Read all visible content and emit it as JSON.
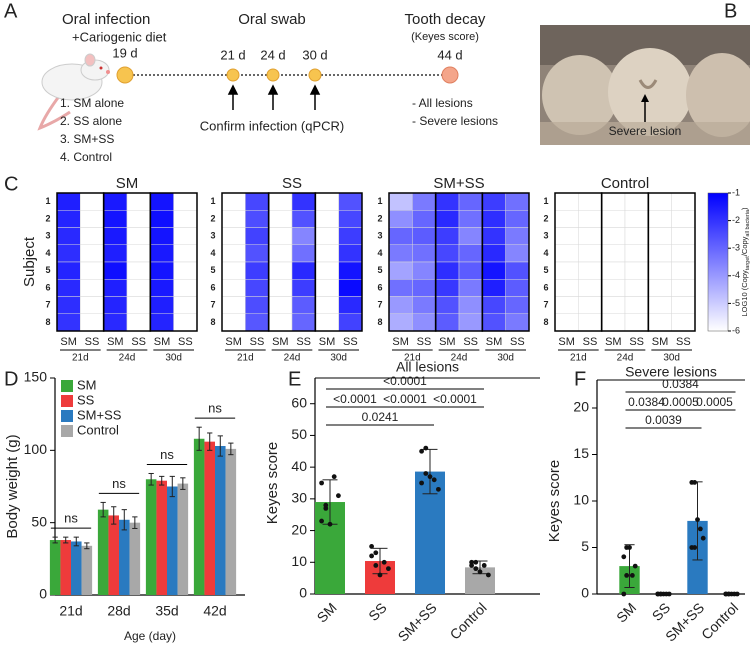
{
  "panel_labels": [
    "A",
    "B",
    "C",
    "D",
    "E",
    "F"
  ],
  "panel_a": {
    "infection_title": "Oral infection",
    "infection_diet": "+Cariogenic diet",
    "swab_title": "Oral swab",
    "decay_title": "Tooth decay",
    "decay_sub": "(Keyes score)",
    "timepoints": [
      "19 d",
      "21 d",
      "24 d",
      "30 d",
      "44 d"
    ],
    "groups": [
      "1. SM alone",
      "2. SS alone",
      "3. SM+SS",
      "4. Control"
    ],
    "confirm": "Confirm infection (qPCR)",
    "outcomes": [
      "- All lesions",
      "- Severe lesions"
    ]
  },
  "panel_b": {
    "annotation": "Severe lesion"
  },
  "chart_data": [
    {
      "type": "heatmap",
      "title": "SM",
      "ylabel": "Subject",
      "rows": [
        "1",
        "2",
        "3",
        "4",
        "5",
        "6",
        "7",
        "8"
      ],
      "columns": [
        "SM",
        "SS",
        "SM",
        "SS",
        "SM",
        "SS"
      ],
      "column_groups": [
        "21d",
        "24d",
        "30d"
      ],
      "zlim": [
        -6,
        -1
      ],
      "values": [
        [
          -1.6,
          -6,
          -1.5,
          -6,
          -1.4,
          -6
        ],
        [
          -1.7,
          -6,
          -1.4,
          -6,
          -1.3,
          -6
        ],
        [
          -1.8,
          -6,
          -1.5,
          -6,
          -1.4,
          -6
        ],
        [
          -1.9,
          -6,
          -1.6,
          -6,
          -1.5,
          -6
        ],
        [
          -1.7,
          -6,
          -1.3,
          -6,
          -1.4,
          -6
        ],
        [
          -1.8,
          -6,
          -1.6,
          -6,
          -1.5,
          -6
        ],
        [
          -1.9,
          -6,
          -1.7,
          -6,
          -1.6,
          -6
        ],
        [
          -2.0,
          -6,
          -1.8,
          -6,
          -1.7,
          -6
        ]
      ]
    },
    {
      "type": "heatmap",
      "title": "SS",
      "rows": [
        "1",
        "2",
        "3",
        "4",
        "5",
        "6",
        "7",
        "8"
      ],
      "columns": [
        "SM",
        "SS",
        "SM",
        "SS",
        "SM",
        "SS"
      ],
      "column_groups": [
        "21d",
        "24d",
        "30d"
      ],
      "zlim": [
        -6,
        -1
      ],
      "values": [
        [
          -6,
          -2.4,
          -6,
          -2.0,
          -6,
          -2.6
        ],
        [
          -6,
          -2.5,
          -6,
          -2.6,
          -6,
          -2.4
        ],
        [
          -6,
          -2.3,
          -6,
          -3.6,
          -6,
          -2.2
        ],
        [
          -6,
          -2.6,
          -6,
          -3.2,
          -6,
          -2.0
        ],
        [
          -6,
          -2.2,
          -6,
          -1.8,
          -6,
          -1.4
        ],
        [
          -6,
          -2.4,
          -6,
          -2.2,
          -6,
          -1.2
        ],
        [
          -6,
          -2.5,
          -6,
          -2.8,
          -6,
          -1.8
        ],
        [
          -6,
          -2.7,
          -6,
          -3.0,
          -6,
          -2.3
        ]
      ]
    },
    {
      "type": "heatmap",
      "title": "SM+SS",
      "rows": [
        "1",
        "2",
        "3",
        "4",
        "5",
        "6",
        "7",
        "8"
      ],
      "columns": [
        "SM",
        "SS",
        "SM",
        "SS",
        "SM",
        "SS"
      ],
      "column_groups": [
        "21d",
        "24d",
        "30d"
      ],
      "zlim": [
        -6,
        -1
      ],
      "values": [
        [
          -4.8,
          -3.4,
          -2.0,
          -3.0,
          -2.2,
          -3.2
        ],
        [
          -3.8,
          -3.0,
          -1.8,
          -3.2,
          -1.9,
          -3.0
        ],
        [
          -3.0,
          -2.8,
          -2.2,
          -3.6,
          -2.0,
          -3.4
        ],
        [
          -3.4,
          -3.2,
          -2.4,
          -3.0,
          -1.8,
          -3.6
        ],
        [
          -4.2,
          -3.6,
          -1.9,
          -2.8,
          -1.4,
          -2.6
        ],
        [
          -3.2,
          -3.0,
          -2.1,
          -3.4,
          -1.6,
          -2.8
        ],
        [
          -4.0,
          -3.4,
          -2.6,
          -3.8,
          -2.4,
          -3.0
        ],
        [
          -4.4,
          -3.8,
          -2.8,
          -4.0,
          -2.6,
          -3.4
        ]
      ]
    },
    {
      "type": "heatmap",
      "title": "Control",
      "rows": [
        "1",
        "2",
        "3",
        "4",
        "5",
        "6",
        "7",
        "8"
      ],
      "columns": [
        "SM",
        "SS",
        "SM",
        "SS",
        "SM",
        "SS"
      ],
      "column_groups": [
        "21d",
        "24d",
        "30d"
      ],
      "zlim": [
        -6,
        -1
      ],
      "zticks": [
        -1,
        -2,
        -3,
        -4,
        -5,
        -6
      ],
      "colorbar_label": [
        "LOG10 (Copy",
        "target",
        "/Copy",
        "all bacteria",
        ")"
      ],
      "values": [
        [
          -6,
          -6,
          -6,
          -6,
          -6,
          -6
        ],
        [
          -6,
          -6,
          -6,
          -6,
          -6,
          -6
        ],
        [
          -6,
          -6,
          -6,
          -6,
          -6,
          -6
        ],
        [
          -6,
          -6,
          -6,
          -6,
          -6,
          -6
        ],
        [
          -6,
          -6,
          -6,
          -6,
          -6,
          -6
        ],
        [
          -6,
          -6,
          -6,
          -6,
          -6,
          -6
        ],
        [
          -6,
          -6,
          -6,
          -6,
          -6,
          -6
        ],
        [
          -6,
          -6,
          -6,
          -6,
          -6,
          -6
        ]
      ]
    },
    {
      "type": "bar",
      "ylabel": "Body weight (g)",
      "xlabel": "Age (day)",
      "categories": [
        "21d",
        "28d",
        "35d",
        "42d"
      ],
      "ylim": [
        0,
        150
      ],
      "yticks": [
        0,
        50,
        100,
        150
      ],
      "legend": "top-left",
      "group_annotations": [
        "ns",
        "ns",
        "ns",
        "ns"
      ],
      "series": [
        {
          "name": "SM",
          "color": "#3aa83a",
          "values": [
            38,
            59,
            80,
            108
          ],
          "errors": [
            2,
            5,
            4,
            8
          ]
        },
        {
          "name": "SS",
          "color": "#ee3b3b",
          "values": [
            38,
            55,
            79,
            106
          ],
          "errors": [
            2,
            6,
            3,
            6
          ]
        },
        {
          "name": "SM+SS",
          "color": "#2a7ac0",
          "values": [
            37,
            52,
            75,
            103
          ],
          "errors": [
            3,
            7,
            7,
            7
          ]
        },
        {
          "name": "Control",
          "color": "#a8a8a8",
          "values": [
            34,
            50,
            77,
            101
          ],
          "errors": [
            2,
            4,
            4,
            4
          ]
        }
      ]
    },
    {
      "type": "bar",
      "title": "All lesions",
      "ylabel": "Keyes score",
      "categories": [
        "SM",
        "SS",
        "SM+SS",
        "Control"
      ],
      "ylim": [
        0,
        70
      ],
      "yticks": [
        0,
        10,
        20,
        30,
        40,
        50,
        60
      ],
      "colors": [
        "#3aa83a",
        "#ee3b3b",
        "#2a7ac0",
        "#a8a8a8"
      ],
      "values": [
        29,
        10.4,
        38.6,
        8.4
      ],
      "errors": [
        7,
        4,
        7,
        2
      ],
      "points": [
        [
          23,
          27,
          22,
          37,
          31,
          35,
          28
        ],
        [
          15,
          13,
          6,
          10,
          8,
          12,
          9
        ],
        [
          45,
          46,
          37,
          36,
          33,
          35,
          38
        ],
        [
          10,
          8,
          7,
          9,
          6,
          9,
          10
        ]
      ],
      "comparisons": [
        {
          "groups": [
            "SM",
            "Control"
          ],
          "label": "<0.0001"
        },
        {
          "groups": [
            "SM",
            "SS"
          ],
          "label": "<0.0001"
        },
        {
          "groups": [
            "SS",
            "SM+SS"
          ],
          "label": "<0.0001"
        },
        {
          "groups": [
            "SM+SS",
            "Control"
          ],
          "label": "<0.0001"
        },
        {
          "groups": [
            "SM",
            "SM+SS"
          ],
          "label": "0.0241"
        }
      ]
    },
    {
      "type": "bar",
      "title": "Severe lesions",
      "ylabel": "Keyes score",
      "categories": [
        "SM",
        "SS",
        "SM+SS",
        "Control"
      ],
      "ylim": [
        0,
        20
      ],
      "yticks": [
        0,
        5,
        10,
        15,
        20
      ],
      "colors": [
        "#3aa83a",
        "#ee3b3b",
        "#2a7ac0",
        "#a8a8a8"
      ],
      "values": [
        3,
        0,
        7.86,
        0
      ],
      "errors": [
        2.3,
        0,
        4.2,
        0
      ],
      "points": [
        [
          0,
          5,
          5,
          2,
          3,
          4,
          2
        ],
        [
          0,
          0,
          0,
          0,
          0,
          0,
          0
        ],
        [
          12,
          12,
          8,
          7,
          6,
          5,
          5
        ],
        [
          0,
          0,
          0,
          0,
          0,
          0,
          0
        ]
      ],
      "comparisons": [
        {
          "groups": [
            "SM",
            "Control"
          ],
          "label": "0.0384"
        },
        {
          "groups": [
            "SM",
            "SS"
          ],
          "label": "0.0384"
        },
        {
          "groups": [
            "SS",
            "SM+SS"
          ],
          "label": "0.0005"
        },
        {
          "groups": [
            "SM+SS",
            "Control"
          ],
          "label": "0.0005"
        },
        {
          "groups": [
            "SM",
            "SM+SS"
          ],
          "label": "0.0039"
        }
      ]
    }
  ]
}
